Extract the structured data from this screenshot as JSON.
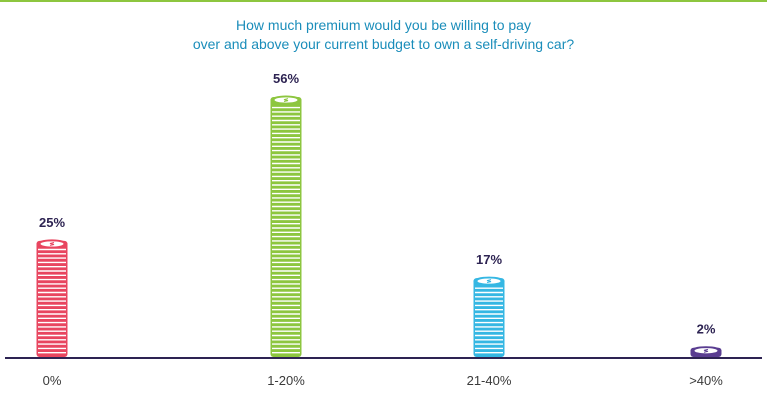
{
  "colors": {
    "title": "#1a8dba",
    "axis": "#2d2352",
    "top_rule": "#8dc63f",
    "coins": [
      "#e8455f",
      "#8dc63f",
      "#35b7e3",
      "#5a3d91"
    ]
  },
  "chart_data": {
    "type": "bar",
    "title_lines": [
      "How much premium would you be willing to pay",
      "over and above your current budget to own a self-driving car?"
    ],
    "categories": [
      "0%",
      "1-20%",
      "21-40%",
      ">40%"
    ],
    "values": [
      25,
      56,
      17,
      2
    ],
    "value_labels": [
      "25%",
      "56%",
      "17%",
      "2%"
    ],
    "unit": "%",
    "ylim": [
      0,
      56
    ],
    "xlabel": "",
    "ylabel": "",
    "grid": false,
    "legend": "none",
    "mark_icon": "coin-stack-icon"
  }
}
